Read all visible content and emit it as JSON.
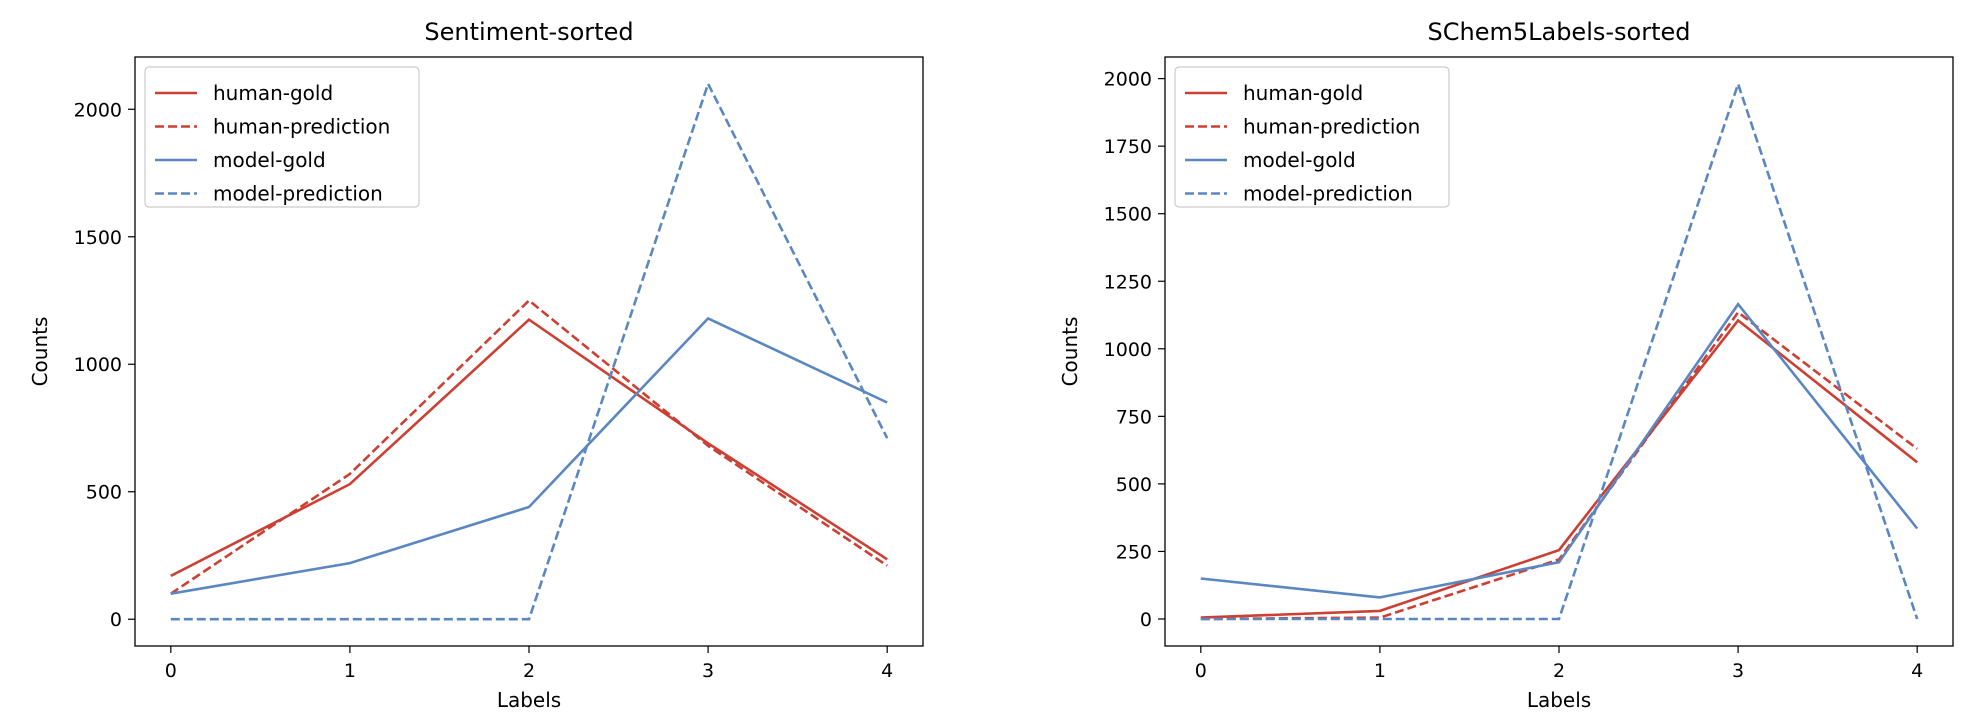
{
  "chart_data": [
    {
      "type": "line",
      "title": "Sentiment-sorted",
      "xlabel": "Labels",
      "ylabel": "Counts",
      "x": [
        0,
        1,
        2,
        3,
        4
      ],
      "xticks": [
        "0",
        "1",
        "2",
        "3",
        "4"
      ],
      "yticks": [
        0,
        500,
        1000,
        1500,
        2000
      ],
      "xlim": [
        -0.2,
        4.2
      ],
      "ylim": [
        -105,
        2205
      ],
      "grid": false,
      "legend_position": "upper-left",
      "series": [
        {
          "name": "human-gold",
          "values": [
            170,
            530,
            1175,
            690,
            235
          ],
          "color": "#cc3f33",
          "style": "solid"
        },
        {
          "name": "human-prediction",
          "values": [
            100,
            570,
            1250,
            680,
            210
          ],
          "color": "#cc3f33",
          "style": "dashed"
        },
        {
          "name": "model-gold",
          "values": [
            100,
            220,
            440,
            1180,
            850
          ],
          "color": "#5a87c2",
          "style": "solid"
        },
        {
          "name": "model-prediction",
          "values": [
            0,
            0,
            0,
            2100,
            710
          ],
          "color": "#5a87c2",
          "style": "dashed"
        }
      ]
    },
    {
      "type": "line",
      "title": "SChem5Labels-sorted",
      "xlabel": "Labels",
      "ylabel": "Counts",
      "x": [
        0,
        1,
        2,
        3,
        4
      ],
      "xticks": [
        "0",
        "1",
        "2",
        "3",
        "4"
      ],
      "yticks": [
        0,
        250,
        500,
        750,
        1000,
        1250,
        1500,
        1750,
        2000
      ],
      "xlim": [
        -0.2,
        4.2
      ],
      "ylim": [
        -100,
        2080
      ],
      "grid": false,
      "legend_position": "upper-left",
      "series": [
        {
          "name": "human-gold",
          "values": [
            5,
            30,
            255,
            1105,
            580
          ],
          "color": "#cc3f33",
          "style": "solid"
        },
        {
          "name": "human-prediction",
          "values": [
            0,
            5,
            220,
            1135,
            630
          ],
          "color": "#cc3f33",
          "style": "dashed"
        },
        {
          "name": "model-gold",
          "values": [
            150,
            80,
            210,
            1165,
            335
          ],
          "color": "#5a87c2",
          "style": "solid"
        },
        {
          "name": "model-prediction",
          "values": [
            0,
            0,
            0,
            1980,
            0
          ],
          "color": "#5a87c2",
          "style": "dashed"
        }
      ]
    }
  ]
}
